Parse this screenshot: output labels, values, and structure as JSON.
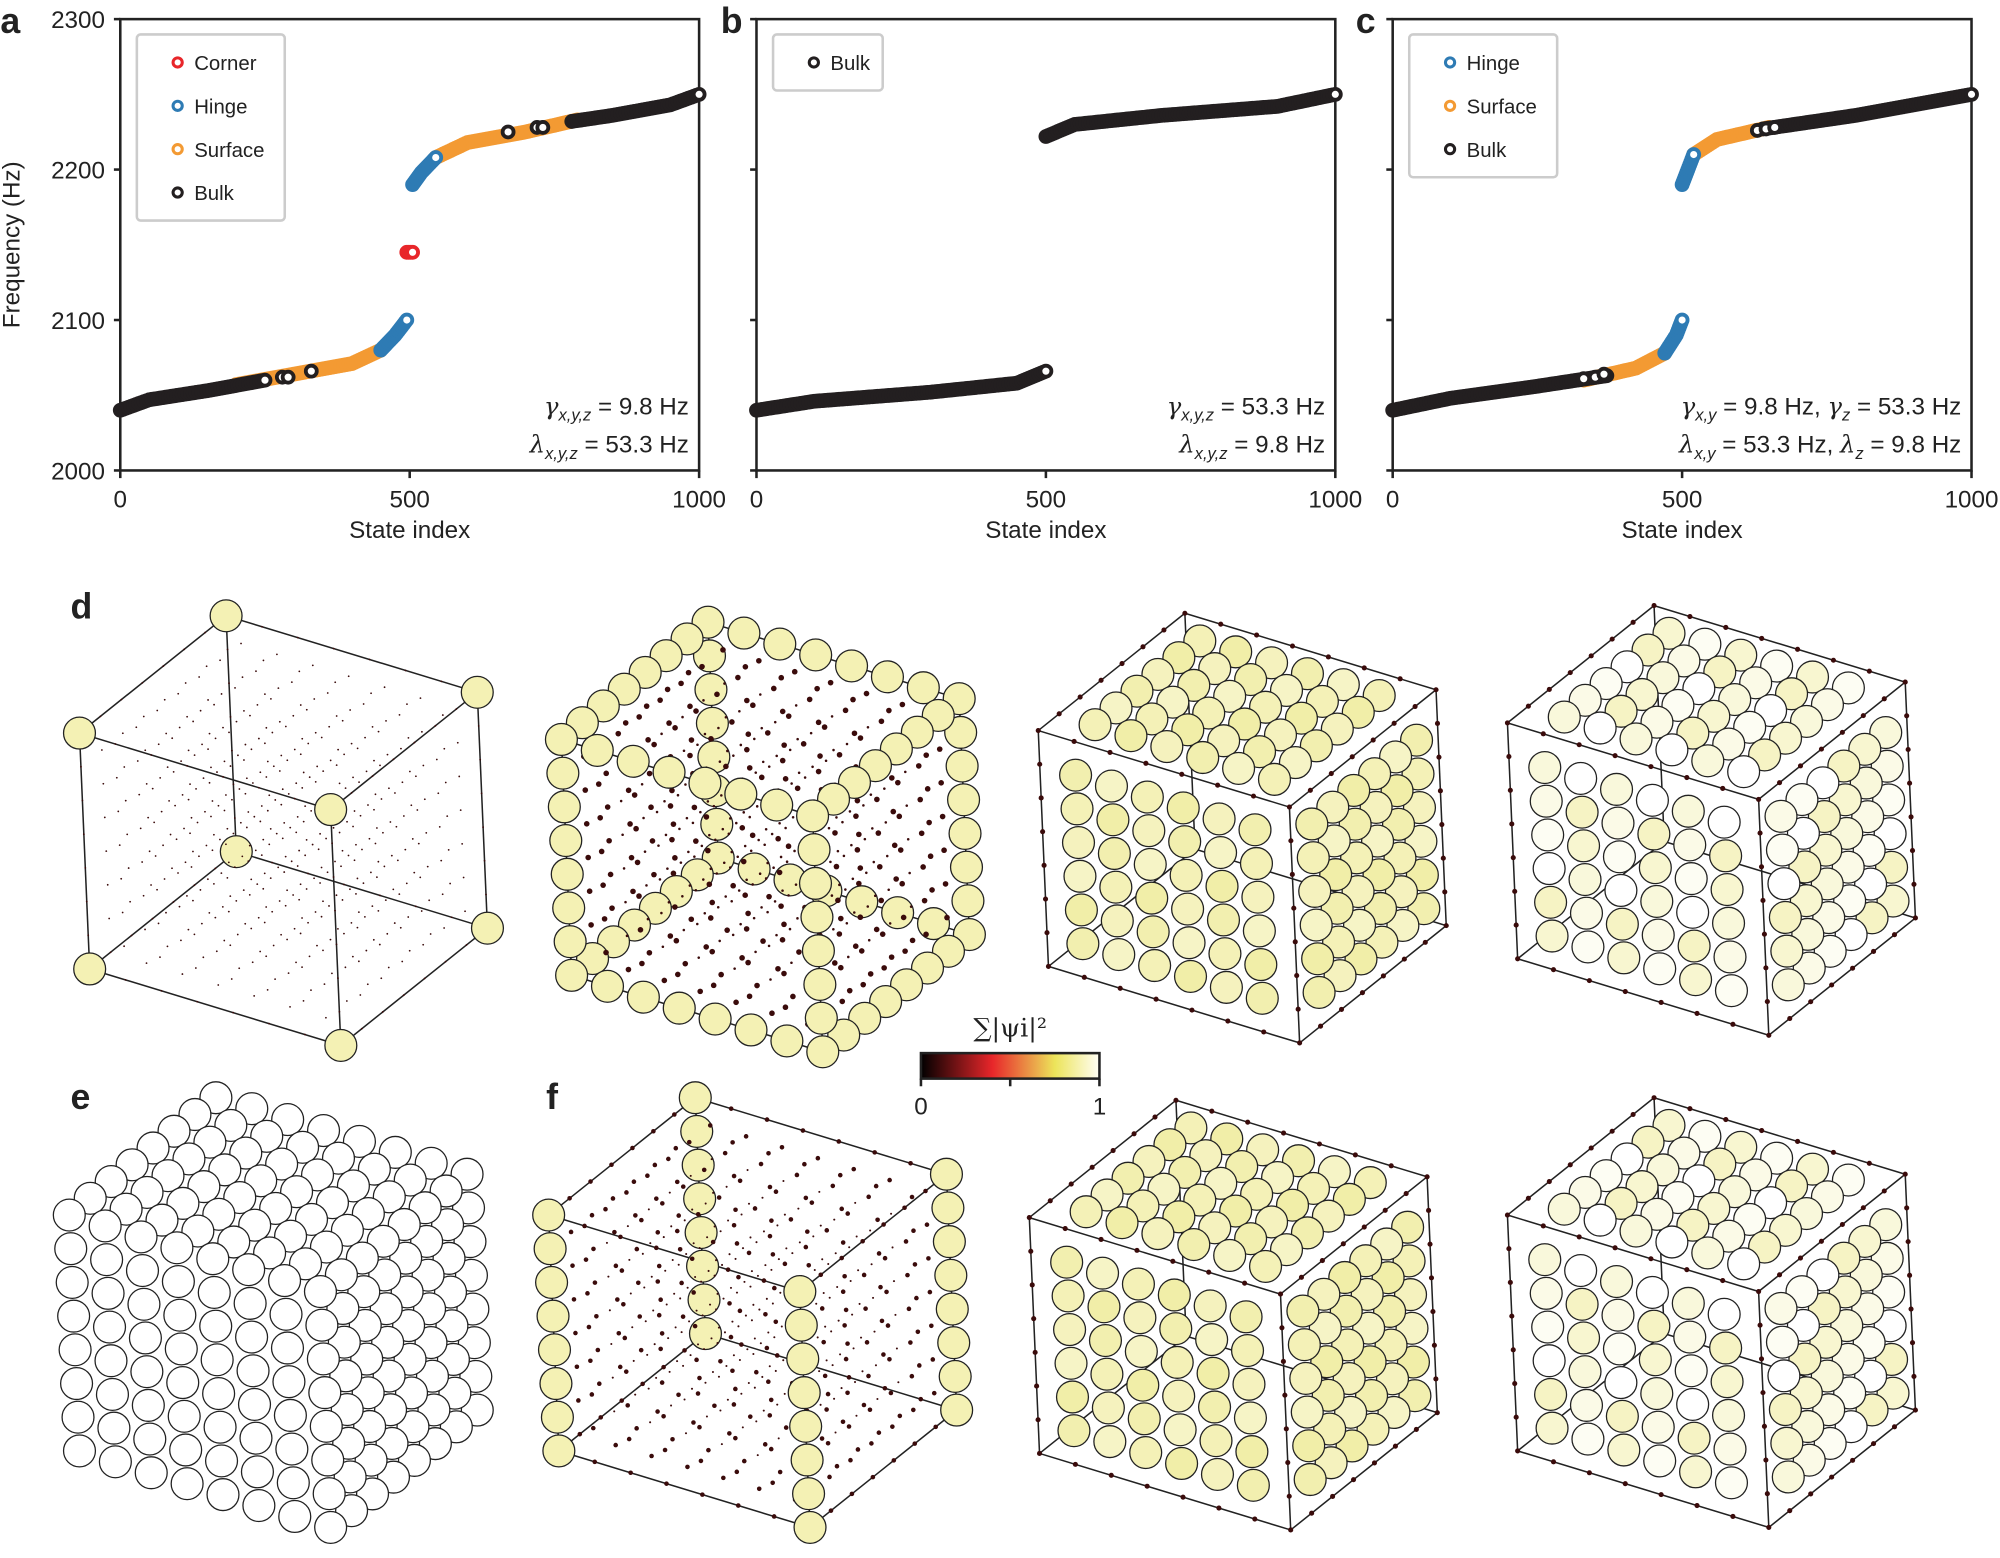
{
  "panel_labels": {
    "a": "a",
    "b": "b",
    "c": "c",
    "d": "d",
    "e": "e",
    "f": "f"
  },
  "colors": {
    "corner": "#e8262a",
    "hinge": "#2e7bb4",
    "surface": "#f39a33",
    "bulk": "#231f20",
    "lattice_fill_high": "#f4f1b4",
    "lattice_fill_white": "#ffffff",
    "dot": "#3a0b0b"
  },
  "colorbar": {
    "title": "∑|ψi|²",
    "min_label": "0",
    "max_label": "1",
    "colormap": [
      "#000000",
      "#e8262a",
      "#f0e860",
      "#fffef5"
    ]
  },
  "chart_data": [
    {
      "type": "scatter",
      "panel": "a",
      "xlabel": "State index",
      "ylabel": "Frequency (Hz)",
      "xlim": [
        0,
        1000
      ],
      "ylim": [
        2000,
        2300
      ],
      "xticks": [
        "0",
        "500",
        "1000"
      ],
      "yticks": [
        "2000",
        "2100",
        "2200",
        "2300"
      ],
      "legend_placement": "top-left",
      "legend": [
        "Corner",
        "Hinge",
        "Surface",
        "Bulk"
      ],
      "annotation": [
        {
          "sym": "γ",
          "sub": "x,y,z",
          "rest": " = 9.8 Hz"
        },
        {
          "sym": "λ",
          "sub": "x,y,z",
          "rest": " = 53.3 Hz"
        }
      ],
      "series": [
        {
          "name": "Surface",
          "color": "#f39a33",
          "segments": [
            [
              [
                200,
                2057
              ],
              [
                300,
                2064
              ],
              [
                400,
                2071
              ],
              [
                450,
                2080
              ]
            ],
            [
              [
                545,
                2208
              ],
              [
                600,
                2218
              ],
              [
                700,
                2225
              ],
              [
                790,
                2233
              ]
            ]
          ]
        },
        {
          "name": "Hinge",
          "color": "#2e7bb4",
          "segments": [
            [
              [
                450,
                2080
              ],
              [
                475,
                2090
              ],
              [
                495,
                2100
              ]
            ],
            [
              [
                505,
                2190
              ],
              [
                520,
                2198
              ],
              [
                545,
                2208
              ]
            ]
          ]
        },
        {
          "name": "Corner",
          "color": "#e8262a",
          "segments": [
            [
              [
                495,
                2145
              ],
              [
                505,
                2145
              ]
            ]
          ]
        },
        {
          "name": "Bulk",
          "color": "#231f20",
          "segments": [
            [
              [
                0,
                2040
              ],
              [
                50,
                2047
              ],
              [
                150,
                2053
              ],
              [
                250,
                2060
              ]
            ],
            [
              [
                780,
                2232
              ],
              [
                850,
                2236
              ],
              [
                950,
                2243
              ],
              [
                1000,
                2250
              ]
            ]
          ],
          "points": [
            [
              280,
              2062
            ],
            [
              290,
              2062
            ],
            [
              330,
              2066
            ],
            [
              670,
              2225
            ],
            [
              720,
              2228
            ],
            [
              730,
              2228
            ]
          ]
        }
      ]
    },
    {
      "type": "scatter",
      "panel": "b",
      "xlabel": "State index",
      "ylabel": "",
      "xlim": [
        0,
        1000
      ],
      "ylim": [
        2000,
        2300
      ],
      "xticks": [
        "0",
        "500",
        "1000"
      ],
      "yticks": [],
      "legend_placement": "top-left",
      "legend": [
        "Bulk"
      ],
      "annotation": [
        {
          "sym": "γ",
          "sub": "x,y,z",
          "rest": " = 53.3 Hz"
        },
        {
          "sym": "λ",
          "sub": "x,y,z",
          "rest": " = 9.8 Hz"
        }
      ],
      "series": [
        {
          "name": "Bulk",
          "color": "#231f20",
          "segments": [
            [
              [
                0,
                2040
              ],
              [
                100,
                2046
              ],
              [
                300,
                2052
              ],
              [
                450,
                2058
              ],
              [
                500,
                2066
              ]
            ],
            [
              [
                500,
                2222
              ],
              [
                550,
                2230
              ],
              [
                700,
                2236
              ],
              [
                900,
                2242
              ],
              [
                1000,
                2250
              ]
            ]
          ]
        }
      ]
    },
    {
      "type": "scatter",
      "panel": "c",
      "xlabel": "State index",
      "ylabel": "",
      "xlim": [
        0,
        1000
      ],
      "ylim": [
        2000,
        2300
      ],
      "xticks": [
        "0",
        "500",
        "1000"
      ],
      "yticks": [],
      "legend_placement": "top-left",
      "legend": [
        "Hinge",
        "Surface",
        "Bulk"
      ],
      "annotation": [
        {
          "sym": "γ",
          "sub": "x,y",
          "rest": " = 9.8 Hz, ",
          "sym2": "γ",
          "sub2": "z",
          "rest2": " = 53.3 Hz"
        },
        {
          "sym": "λ",
          "sub": "x,y",
          "rest": " = 53.3 Hz, ",
          "sym2": "λ",
          "sub2": "z",
          "rest2": " = 9.8 Hz"
        }
      ],
      "series": [
        {
          "name": "Surface",
          "color": "#f39a33",
          "segments": [
            [
              [
                330,
                2060
              ],
              [
                420,
                2068
              ],
              [
                470,
                2078
              ]
            ],
            [
              [
                520,
                2210
              ],
              [
                560,
                2220
              ],
              [
                650,
                2228
              ]
            ]
          ]
        },
        {
          "name": "Hinge",
          "color": "#2e7bb4",
          "segments": [
            [
              [
                470,
                2078
              ],
              [
                490,
                2090
              ],
              [
                500,
                2100
              ]
            ],
            [
              [
                500,
                2190
              ],
              [
                510,
                2200
              ],
              [
                520,
                2210
              ]
            ]
          ]
        },
        {
          "name": "Bulk",
          "color": "#231f20",
          "segments": [
            [
              [
                0,
                2040
              ],
              [
                100,
                2048
              ],
              [
                250,
                2056
              ],
              [
                370,
                2063
              ]
            ],
            [
              [
                640,
                2227
              ],
              [
                800,
                2236
              ],
              [
                1000,
                2250
              ]
            ]
          ],
          "points": [
            [
              330,
              2061
            ],
            [
              350,
              2062
            ],
            [
              365,
              2064
            ],
            [
              630,
              2226
            ],
            [
              645,
              2227
            ],
            [
              660,
              2228
            ]
          ]
        }
      ]
    }
  ],
  "lattices": {
    "d": [
      "corner",
      "hinge",
      "surface",
      "bulk"
    ],
    "e": [
      "white"
    ],
    "f": [
      "hinge-z",
      "surface-z",
      "bulk-z"
    ]
  }
}
